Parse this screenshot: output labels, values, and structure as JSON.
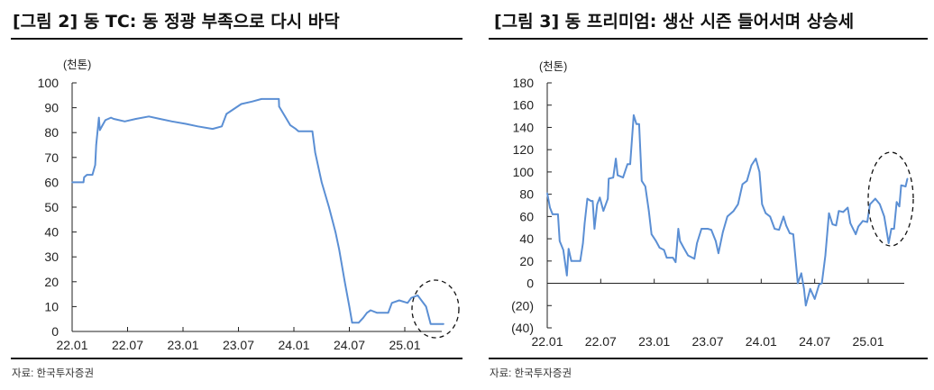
{
  "chart_data": [
    {
      "type": "line",
      "title": "[그림 2] 동 TC: 동 정광 부족으로 다시 바닥",
      "unit_label": "(천톤)",
      "source": "자료: 한국투자증권",
      "xlabel": "",
      "ylabel": "",
      "ylim": [
        0,
        100
      ],
      "yticks": [
        0,
        10,
        20,
        30,
        40,
        50,
        60,
        70,
        80,
        90,
        100
      ],
      "ytick_labels": [
        "0",
        "10",
        "20",
        "30",
        "40",
        "50",
        "60",
        "70",
        "80",
        "90",
        "100"
      ],
      "xticks": [
        "2022-01",
        "2022-07",
        "2023-01",
        "2023-07",
        "2024-01",
        "2024-07",
        "2025-01"
      ],
      "xtick_labels": [
        "22.01",
        "22.07",
        "23.01",
        "23.07",
        "24.01",
        "24.07",
        "25.01"
      ],
      "grid": false,
      "line_color": "#5b8fd4",
      "annotation": "dashed ellipse around 2025 drop",
      "points": [
        [
          "2022-01-01",
          60
        ],
        [
          "2022-02-08",
          60
        ],
        [
          "2022-02-10",
          62
        ],
        [
          "2022-02-19",
          63
        ],
        [
          "2022-03-07",
          63
        ],
        [
          "2022-03-16",
          67
        ],
        [
          "2022-03-19",
          75
        ],
        [
          "2022-03-28",
          86
        ],
        [
          "2022-04-01",
          81
        ],
        [
          "2022-04-10",
          83
        ],
        [
          "2022-04-19",
          85
        ],
        [
          "2022-05-07",
          86
        ],
        [
          "2022-05-16",
          85.5
        ],
        [
          "2022-06-22",
          84.5
        ],
        [
          "2022-07-28",
          85.5
        ],
        [
          "2022-09-10",
          86.5
        ],
        [
          "2022-10-16",
          85.5
        ],
        [
          "2022-11-25",
          84.5
        ],
        [
          "2023-01-10",
          83.5
        ],
        [
          "2023-02-19",
          82.5
        ],
        [
          "2023-04-07",
          81.5
        ],
        [
          "2023-05-07",
          82.5
        ],
        [
          "2023-05-22",
          87.5
        ],
        [
          "2023-06-16",
          89.5
        ],
        [
          "2023-07-10",
          91.5
        ],
        [
          "2023-08-16",
          92.5
        ],
        [
          "2023-09-16",
          93.5
        ],
        [
          "2023-11-12",
          93.5
        ],
        [
          "2023-11-13",
          90.5
        ],
        [
          "2023-12-19",
          83
        ],
        [
          "2024-01-07",
          81.5
        ],
        [
          "2024-01-16",
          80.5
        ],
        [
          "2024-03-01",
          80.5
        ],
        [
          "2024-03-10",
          72
        ],
        [
          "2024-04-01",
          60
        ],
        [
          "2024-04-25",
          50
        ],
        [
          "2024-05-16",
          40
        ],
        [
          "2024-05-28",
          33
        ],
        [
          "2024-06-16",
          20
        ],
        [
          "2024-07-01",
          10
        ],
        [
          "2024-07-10",
          3.5
        ],
        [
          "2024-08-01",
          3.5
        ],
        [
          "2024-08-16",
          5.5
        ],
        [
          "2024-08-28",
          7.5
        ],
        [
          "2024-09-10",
          8.5
        ],
        [
          "2024-10-01",
          7.5
        ],
        [
          "2024-11-07",
          7.5
        ],
        [
          "2024-11-19",
          11.5
        ],
        [
          "2024-12-13",
          12.5
        ],
        [
          "2025-01-10",
          11.5
        ],
        [
          "2025-01-22",
          13.5
        ],
        [
          "2025-02-13",
          14.5
        ],
        [
          "2025-03-10",
          10
        ],
        [
          "2025-03-25",
          3
        ],
        [
          "2025-05-07",
          3
        ]
      ]
    },
    {
      "type": "line",
      "title": "[그림 3] 동 프리미엄: 생산 시즌 들어서며 상승세",
      "unit_label": "(천톤)",
      "source": "자료: 한국투자증권",
      "xlabel": "",
      "ylabel": "",
      "ylim": [
        -40,
        180
      ],
      "yticks": [
        -40,
        -20,
        0,
        20,
        40,
        60,
        80,
        100,
        120,
        140,
        160,
        180
      ],
      "ytick_labels": [
        "(40)",
        "(20)",
        "0",
        "20",
        "40",
        "60",
        "80",
        "100",
        "120",
        "140",
        "160",
        "180"
      ],
      "xticks": [
        "2022-01",
        "2022-07",
        "2023-01",
        "2023-07",
        "2024-01",
        "2024-07",
        "2025-01"
      ],
      "xtick_labels": [
        "22.01",
        "22.07",
        "23.01",
        "23.07",
        "24.01",
        "24.07",
        "25.01"
      ],
      "grid": false,
      "line_color": "#5b8fd4",
      "annotation": "dashed ellipse around 2025 rise",
      "points": [
        [
          "2022-01-01",
          81
        ],
        [
          "2022-01-10",
          68
        ],
        [
          "2022-01-19",
          62
        ],
        [
          "2022-02-07",
          62
        ],
        [
          "2022-02-13",
          38
        ],
        [
          "2022-02-25",
          30
        ],
        [
          "2022-03-07",
          7
        ],
        [
          "2022-03-13",
          31
        ],
        [
          "2022-03-22",
          20
        ],
        [
          "2022-04-22",
          20
        ],
        [
          "2022-05-01",
          36
        ],
        [
          "2022-05-07",
          54
        ],
        [
          "2022-05-16",
          76
        ],
        [
          "2022-05-28",
          74
        ],
        [
          "2022-06-04",
          74
        ],
        [
          "2022-06-10",
          49
        ],
        [
          "2022-06-19",
          71
        ],
        [
          "2022-06-28",
          77
        ],
        [
          "2022-07-10",
          65
        ],
        [
          "2022-07-25",
          76
        ],
        [
          "2022-07-28",
          94
        ],
        [
          "2022-08-13",
          95
        ],
        [
          "2022-08-22",
          112
        ],
        [
          "2022-08-28",
          97
        ],
        [
          "2022-09-16",
          95
        ],
        [
          "2022-10-01",
          107
        ],
        [
          "2022-10-10",
          107
        ],
        [
          "2022-10-22",
          151
        ],
        [
          "2022-11-01",
          143
        ],
        [
          "2022-11-10",
          143
        ],
        [
          "2022-11-19",
          92
        ],
        [
          "2022-12-01",
          87
        ],
        [
          "2022-12-13",
          65
        ],
        [
          "2022-12-22",
          44
        ],
        [
          "2023-01-07",
          38
        ],
        [
          "2023-01-19",
          32
        ],
        [
          "2023-02-04",
          30
        ],
        [
          "2023-02-13",
          23
        ],
        [
          "2023-03-04",
          23
        ],
        [
          "2023-03-13",
          19
        ],
        [
          "2023-03-22",
          49
        ],
        [
          "2023-03-28",
          38
        ],
        [
          "2023-04-10",
          32
        ],
        [
          "2023-04-25",
          25
        ],
        [
          "2023-05-16",
          22
        ],
        [
          "2023-05-25",
          36
        ],
        [
          "2023-06-10",
          49
        ],
        [
          "2023-07-01",
          49
        ],
        [
          "2023-07-13",
          48
        ],
        [
          "2023-07-28",
          38
        ],
        [
          "2023-08-07",
          27
        ],
        [
          "2023-08-22",
          46
        ],
        [
          "2023-09-07",
          60
        ],
        [
          "2023-09-28",
          65
        ],
        [
          "2023-10-13",
          71
        ],
        [
          "2023-10-28",
          89
        ],
        [
          "2023-11-13",
          92
        ],
        [
          "2023-11-28",
          106
        ],
        [
          "2023-12-13",
          112
        ],
        [
          "2023-12-25",
          100
        ],
        [
          "2024-01-04",
          71
        ],
        [
          "2024-01-16",
          63
        ],
        [
          "2024-02-01",
          60
        ],
        [
          "2024-02-16",
          49
        ],
        [
          "2024-03-01",
          48
        ],
        [
          "2024-03-16",
          60
        ],
        [
          "2024-03-25",
          52
        ],
        [
          "2024-04-07",
          45
        ],
        [
          "2024-04-19",
          44
        ],
        [
          "2024-05-04",
          0
        ],
        [
          "2024-05-16",
          9
        ],
        [
          "2024-05-25",
          -5
        ],
        [
          "2024-06-01",
          -20
        ],
        [
          "2024-06-16",
          -5
        ],
        [
          "2024-07-01",
          -14
        ],
        [
          "2024-07-16",
          -1
        ],
        [
          "2024-07-25",
          0
        ],
        [
          "2024-08-07",
          25
        ],
        [
          "2024-08-19",
          63
        ],
        [
          "2024-09-01",
          53
        ],
        [
          "2024-09-13",
          52
        ],
        [
          "2024-09-22",
          65
        ],
        [
          "2024-10-07",
          64
        ],
        [
          "2024-10-22",
          68
        ],
        [
          "2024-11-01",
          54
        ],
        [
          "2024-11-19",
          44
        ],
        [
          "2024-11-28",
          51
        ],
        [
          "2024-12-13",
          56
        ],
        [
          "2024-12-28",
          55
        ],
        [
          "2025-01-07",
          71
        ],
        [
          "2025-01-25",
          76
        ],
        [
          "2025-02-10",
          71
        ],
        [
          "2025-02-25",
          60
        ],
        [
          "2025-03-10",
          36
        ],
        [
          "2025-03-19",
          49
        ],
        [
          "2025-03-28",
          49
        ],
        [
          "2025-04-07",
          73
        ],
        [
          "2025-04-16",
          69
        ],
        [
          "2025-04-22",
          88
        ],
        [
          "2025-05-07",
          87
        ],
        [
          "2025-05-13",
          94
        ]
      ]
    }
  ]
}
